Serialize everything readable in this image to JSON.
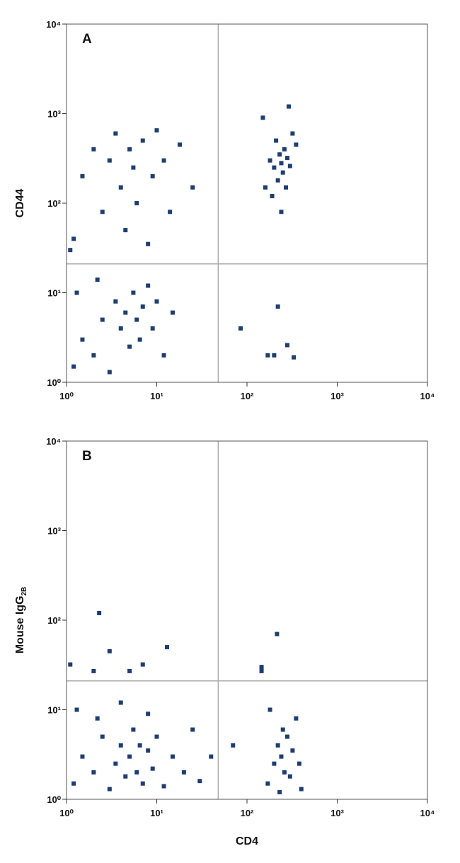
{
  "chart_data": [
    {
      "type": "scatter",
      "panel_label": "A",
      "y_label": "CD44",
      "log_x": true,
      "log_y": true,
      "xlim": [
        1,
        10000
      ],
      "ylim": [
        1,
        10000
      ],
      "xticks": [
        {
          "value": 1,
          "label": "10⁰"
        },
        {
          "value": 10,
          "label": "10¹"
        },
        {
          "value": 100,
          "label": "10²"
        },
        {
          "value": 1000,
          "label": "10³"
        },
        {
          "value": 10000,
          "label": "10⁴"
        }
      ],
      "yticks": [
        {
          "value": 1,
          "label": "10⁰"
        },
        {
          "value": 10,
          "label": "10¹"
        },
        {
          "value": 100,
          "label": "10²"
        },
        {
          "value": 1000,
          "label": "10³"
        },
        {
          "value": 10000,
          "label": "10⁴"
        }
      ],
      "gate": {
        "x": 48,
        "y": 21
      },
      "series": [
        {
          "color": "#1f3e70",
          "x": [
            1.2,
            1.5,
            2,
            2.5,
            3,
            3.5,
            4,
            4.5,
            5,
            5.5,
            6,
            6.5,
            7,
            8,
            9,
            10,
            12,
            1.3,
            2.2,
            15,
            1.2,
            1.5,
            2,
            2.5,
            3,
            3.5,
            4,
            4.5,
            5,
            5.5,
            6,
            7,
            8,
            9,
            10,
            12,
            14,
            18,
            25,
            1.1,
            160,
            180,
            200,
            210,
            220,
            230,
            240,
            250,
            260,
            270,
            280,
            300,
            320,
            190,
            240,
            350,
            290,
            150,
            170,
            200,
            280,
            330,
            220,
            85
          ],
          "y": [
            1.5,
            3,
            2,
            5,
            1.3,
            8,
            4,
            6,
            2.5,
            10,
            5,
            3,
            7,
            12,
            4,
            8,
            2,
            10,
            14,
            6,
            40,
            200,
            400,
            80,
            300,
            600,
            150,
            50,
            400,
            250,
            100,
            500,
            35,
            200,
            650,
            300,
            80,
            450,
            150,
            30,
            150,
            300,
            250,
            500,
            180,
            350,
            280,
            220,
            400,
            150,
            320,
            260,
            600,
            120,
            80,
            450,
            1200,
            900,
            2,
            2,
            2.6,
            1.9,
            7,
            4
          ]
        }
      ]
    },
    {
      "type": "scatter",
      "panel_label": "B",
      "y_label": "Mouse IgG",
      "y_label_subscript": "2B",
      "x_label": "CD4",
      "log_x": true,
      "log_y": true,
      "xlim": [
        1,
        10000
      ],
      "ylim": [
        1,
        10000
      ],
      "xticks": [
        {
          "value": 1,
          "label": "10⁰"
        },
        {
          "value": 10,
          "label": "10¹"
        },
        {
          "value": 100,
          "label": "10²"
        },
        {
          "value": 1000,
          "label": "10³"
        },
        {
          "value": 10000,
          "label": "10⁴"
        }
      ],
      "yticks": [
        {
          "value": 1,
          "label": "10⁰"
        },
        {
          "value": 10,
          "label": "10¹"
        },
        {
          "value": 100,
          "label": "10²"
        },
        {
          "value": 1000,
          "label": "10³"
        },
        {
          "value": 10000,
          "label": "10⁴"
        }
      ],
      "gate": {
        "x": 48,
        "y": 21
      },
      "series": [
        {
          "color": "#1f3e70",
          "x": [
            1.2,
            1.5,
            2,
            2.5,
            3,
            3.5,
            4,
            4.5,
            5,
            5.5,
            6,
            6.5,
            7,
            8,
            9,
            10,
            12,
            15,
            20,
            30,
            1.3,
            2.2,
            4,
            8,
            25,
            40,
            2.3,
            3,
            2,
            5,
            7,
            13,
            1.1,
            170,
            200,
            220,
            230,
            240,
            250,
            260,
            280,
            300,
            320,
            350,
            380,
            400,
            180,
            215,
            145,
            145,
            70
          ],
          "y": [
            1.5,
            3,
            2,
            5,
            1.3,
            2.5,
            4,
            1.8,
            3,
            6,
            2,
            4,
            1.5,
            3.5,
            2.2,
            5,
            1.4,
            3,
            2,
            1.6,
            10,
            8,
            12,
            9,
            6,
            3,
            120,
            45,
            27,
            27,
            32,
            50,
            32,
            1.5,
            2.5,
            4,
            1.2,
            3,
            6,
            2,
            5,
            1.8,
            3.5,
            8,
            2.5,
            1.3,
            10,
            70,
            30,
            27,
            4
          ]
        }
      ]
    }
  ]
}
